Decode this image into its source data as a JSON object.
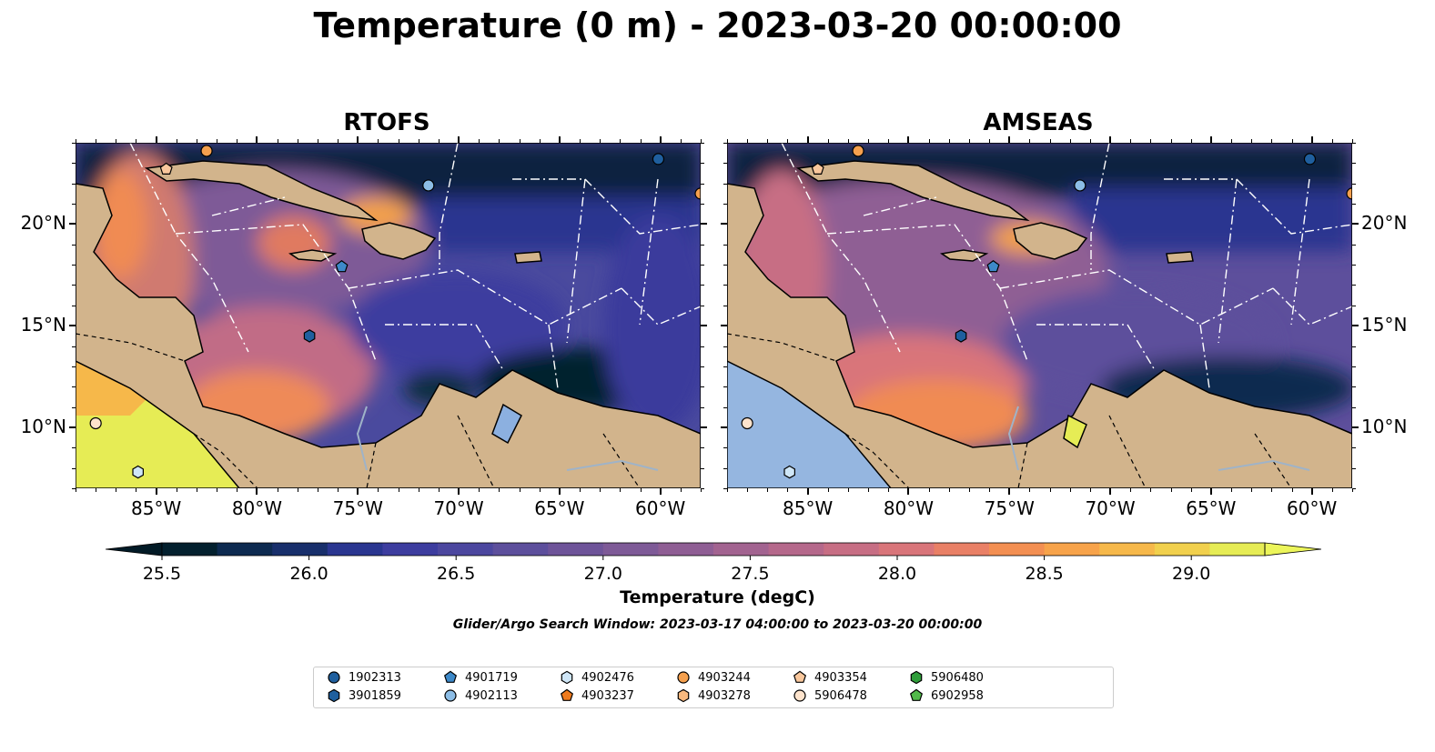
{
  "title": "Temperature (0 m) - 2023-03-20 00:00:00",
  "panels": [
    {
      "title": "RTOFS"
    },
    {
      "title": "AMSEAS"
    }
  ],
  "axes": {
    "lon_ticks": [
      "85°W",
      "80°W",
      "75°W",
      "70°W",
      "65°W",
      "60°W"
    ],
    "lat_ticks": [
      "20°N",
      "15°N",
      "10°N"
    ],
    "lon_range": [
      -89,
      -58
    ],
    "lat_range": [
      7,
      24
    ]
  },
  "colorbar": {
    "label": "Temperature (degC)",
    "ticks": [
      "25.5",
      "26.0",
      "26.5",
      "27.0",
      "27.5",
      "28.0",
      "28.5",
      "29.0"
    ],
    "range": [
      25.5,
      29.25
    ],
    "extend": "both",
    "colors": [
      "#03202e",
      "#0d2a50",
      "#182f6b",
      "#2a3690",
      "#3d3d9f",
      "#4c479f",
      "#5d4f9c",
      "#6e5499",
      "#7e5a97",
      "#8f5e94",
      "#a26390",
      "#b5688b",
      "#c76e84",
      "#d9757a",
      "#e98066",
      "#f38f52",
      "#f7a34a",
      "#f6b84a",
      "#f1d04d",
      "#e6ec55"
    ]
  },
  "search_window": "Glider/Argo Search Window: 2023-03-17 04:00:00 to 2023-03-20 00:00:00",
  "legend": [
    {
      "label": "1902313",
      "marker": "circle",
      "color": "#1f5f9e"
    },
    {
      "label": "3901859",
      "marker": "hexagon",
      "color": "#1f5f9e"
    },
    {
      "label": "4901719",
      "marker": "pentagon",
      "color": "#3d89c9"
    },
    {
      "label": "4902113",
      "marker": "circle",
      "color": "#8cbde6"
    },
    {
      "label": "4902476",
      "marker": "hexagon",
      "color": "#cfe6f7"
    },
    {
      "label": "4903237",
      "marker": "pentagon",
      "color": "#ee7b1e"
    },
    {
      "label": "4903244",
      "marker": "circle",
      "color": "#f5a04e"
    },
    {
      "label": "4903278",
      "marker": "hexagon",
      "color": "#f7b87e"
    },
    {
      "label": "4903354",
      "marker": "pentagon",
      "color": "#f9c79c"
    },
    {
      "label": "5906478",
      "marker": "circle",
      "color": "#fde3cc"
    },
    {
      "label": "5906480",
      "marker": "hexagon",
      "color": "#2f9d3a"
    },
    {
      "label": "6902958",
      "marker": "pentagon",
      "color": "#52b94a"
    }
  ],
  "floats": [
    {
      "id": "1902313",
      "lon": -60.1,
      "lat": 23.2
    },
    {
      "id": "4903354",
      "lon": -84.5,
      "lat": 22.7
    },
    {
      "id": "4903244",
      "lon": -82.5,
      "lat": 23.6
    },
    {
      "id": "4903244",
      "lon": -58.0,
      "lat": 21.5
    },
    {
      "id": "4902113",
      "lon": -71.5,
      "lat": 21.9
    },
    {
      "id": "4901719",
      "lon": -75.8,
      "lat": 17.9
    },
    {
      "id": "3901859",
      "lon": -77.4,
      "lat": 14.5
    },
    {
      "id": "5906478",
      "lon": -88.0,
      "lat": 10.2
    },
    {
      "id": "4902476",
      "lon": -85.9,
      "lat": 7.8
    }
  ]
}
